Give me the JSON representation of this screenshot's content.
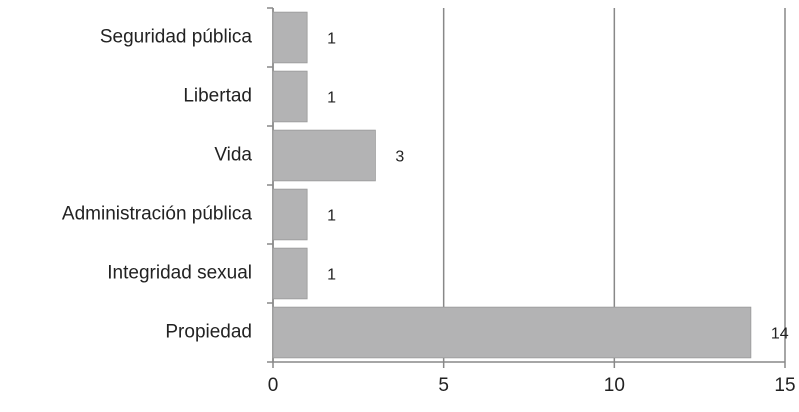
{
  "chart_data": {
    "type": "bar",
    "orientation": "horizontal",
    "categories": [
      "Seguridad pública",
      "Libertad",
      "Vida",
      "Administración pública",
      "Integridad sexual",
      "Propiedad"
    ],
    "values": [
      1,
      1,
      3,
      1,
      1,
      14
    ],
    "color": "#b3b3b4",
    "xlim": [
      0,
      15
    ],
    "xticks": [
      0,
      5,
      10,
      15
    ],
    "grid": true,
    "data_labels": true
  }
}
